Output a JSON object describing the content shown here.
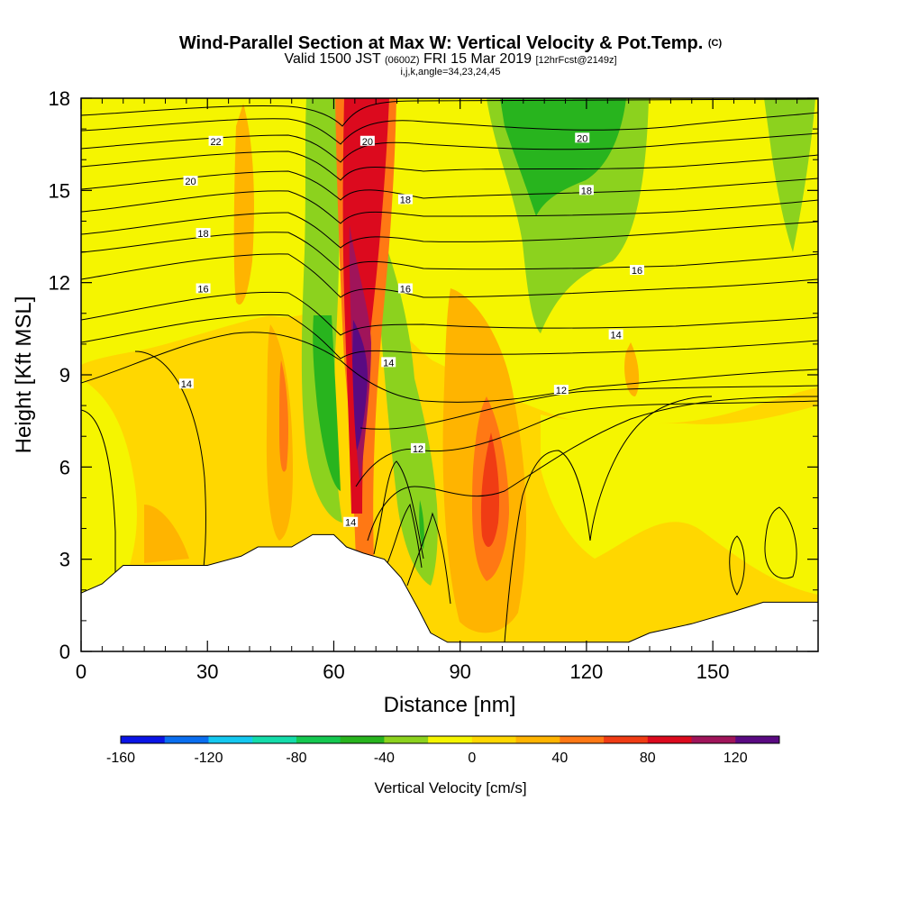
{
  "header": {
    "title": "Wind-Parallel Section at Max W: Vertical Velocity & Pot.Temp.",
    "title_tag": "(C)",
    "valid_prefix": "Valid 1500 JST",
    "valid_utc": "(0600Z)",
    "valid_date": "FRI 15 Mar 2019",
    "forecast": "[12hrFcst@2149z]",
    "indices": "i,j,k,angle=34,23,24,45"
  },
  "chart_data": {
    "type": "contour",
    "xlabel": "Distance [nm]",
    "ylabel": "Height [Kft MSL]",
    "xlim": [
      0,
      175
    ],
    "ylim": [
      0,
      18
    ],
    "xticks": [
      0,
      30,
      60,
      90,
      120,
      150
    ],
    "yticks": [
      0,
      3,
      6,
      9,
      12,
      15,
      18
    ],
    "colorbar": {
      "title": "Vertical Velocity [cm/s]",
      "ticks": [
        "-160",
        "-120",
        "-80",
        "-40",
        "0",
        "40",
        "80",
        "120"
      ],
      "bins": [
        -160,
        -140,
        -120,
        -100,
        -80,
        -60,
        -40,
        -20,
        0,
        20,
        40,
        60,
        80,
        100,
        120,
        140
      ],
      "colors": [
        "#0a14e6",
        "#0a6ef0",
        "#14c8f0",
        "#14dcaa",
        "#14c850",
        "#28b41e",
        "#8cd21e",
        "#f5f500",
        "#ffd700",
        "#ffb400",
        "#ff7814",
        "#f03c14",
        "#dc0a1e",
        "#a0145a",
        "#5a0a82"
      ]
    },
    "terrain_kft": [
      [
        0,
        1.9
      ],
      [
        5,
        2.2
      ],
      [
        10,
        2.8
      ],
      [
        20,
        2.8
      ],
      [
        30,
        2.8
      ],
      [
        38,
        3.1
      ],
      [
        42,
        3.4
      ],
      [
        50,
        3.4
      ],
      [
        55,
        3.8
      ],
      [
        60,
        3.8
      ],
      [
        63,
        3.4
      ],
      [
        67,
        3.2
      ],
      [
        72,
        3.0
      ],
      [
        76,
        2.4
      ],
      [
        80,
        1.4
      ],
      [
        83,
        0.6
      ],
      [
        87,
        0.3
      ],
      [
        95,
        0.3
      ],
      [
        110,
        0.3
      ],
      [
        120,
        0.3
      ],
      [
        130,
        0.3
      ],
      [
        135,
        0.6
      ],
      [
        145,
        0.9
      ],
      [
        155,
        1.3
      ],
      [
        162,
        1.6
      ],
      [
        175,
        1.6
      ]
    ],
    "theta_labels": [
      {
        "text": "22",
        "x": 32,
        "y": 16.6
      },
      {
        "text": "20",
        "x": 26,
        "y": 15.3
      },
      {
        "text": "18",
        "x": 29,
        "y": 13.6
      },
      {
        "text": "16",
        "x": 29,
        "y": 11.8
      },
      {
        "text": "14",
        "x": 25,
        "y": 8.7
      },
      {
        "text": "20",
        "x": 68,
        "y": 16.6
      },
      {
        "text": "18",
        "x": 77,
        "y": 14.7
      },
      {
        "text": "16",
        "x": 77,
        "y": 11.8
      },
      {
        "text": "14",
        "x": 73,
        "y": 9.4
      },
      {
        "text": "12",
        "x": 80,
        "y": 6.6
      },
      {
        "text": "14",
        "x": 64,
        "y": 4.2
      },
      {
        "text": "20",
        "x": 119,
        "y": 16.7
      },
      {
        "text": "18",
        "x": 120,
        "y": 15
      },
      {
        "text": "16",
        "x": 132,
        "y": 12.4
      },
      {
        "text": "14",
        "x": 127,
        "y": 10.3
      },
      {
        "text": "12",
        "x": 114,
        "y": 8.5
      }
    ]
  }
}
